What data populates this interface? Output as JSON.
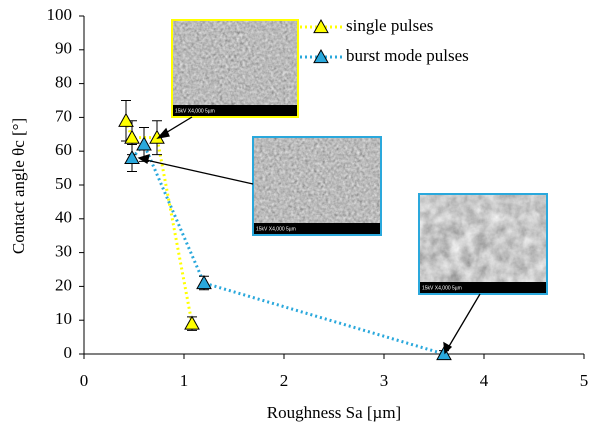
{
  "chart_data": {
    "type": "scatter",
    "x_label": "Roughness Sa [µm]",
    "y_label": "Contact angle θc [°]",
    "xlim": [
      0,
      5
    ],
    "xticks": [
      0,
      1,
      2,
      3,
      4,
      5
    ],
    "ylim": [
      0,
      100
    ],
    "yticks": [
      0,
      10,
      20,
      30,
      40,
      50,
      60,
      70,
      80,
      90,
      100
    ],
    "legend": "top-right",
    "series": [
      {
        "name": "single pulses",
        "color": "#ffff00",
        "x": [
          0.42,
          0.48,
          0.73,
          1.08
        ],
        "values": [
          69,
          64,
          64,
          9
        ],
        "errors": [
          6,
          5,
          5,
          2
        ]
      },
      {
        "name": "burst mode pulses",
        "color": "#2aa8dc",
        "x": [
          0.48,
          0.6,
          1.2,
          3.6
        ],
        "values": [
          58,
          62,
          21,
          0
        ],
        "errors": [
          4,
          5,
          2,
          1
        ]
      }
    ],
    "insets": [
      {
        "caption": "15kV X4,000 5µm"
      },
      {
        "caption": "15kV X4,000 5µm"
      },
      {
        "caption": "15kV X4,000 5µm"
      }
    ]
  }
}
